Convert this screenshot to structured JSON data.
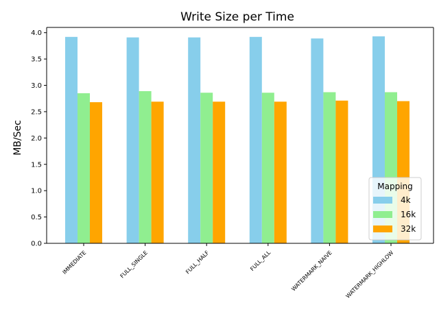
{
  "chart_data": {
    "type": "bar",
    "title": "Write Size per Time",
    "xlabel": "",
    "ylabel": "MB/Sec",
    "categories": [
      "IMMEDIATE",
      "FULL_SINGLE",
      "FULL_HALF",
      "FULL_ALL",
      "WATERMARK_NAIVE",
      "WATERMARK_HIGHLOW"
    ],
    "series": [
      {
        "name": "4k",
        "color": "#87ceeb",
        "values": [
          3.92,
          3.91,
          3.91,
          3.92,
          3.89,
          3.93
        ]
      },
      {
        "name": "16k",
        "color": "#90ee90",
        "values": [
          2.85,
          2.89,
          2.86,
          2.86,
          2.87,
          2.87
        ]
      },
      {
        "name": "32k",
        "color": "#ffa500",
        "values": [
          2.68,
          2.69,
          2.69,
          2.69,
          2.71,
          2.7
        ]
      }
    ],
    "ylim": [
      0,
      4.1
    ],
    "yticks": [
      0.0,
      0.5,
      1.0,
      1.5,
      2.0,
      2.5,
      3.0,
      3.5,
      4.0
    ],
    "legend": {
      "title": "Mapping",
      "placement": "lower-right"
    },
    "grid": false
  }
}
